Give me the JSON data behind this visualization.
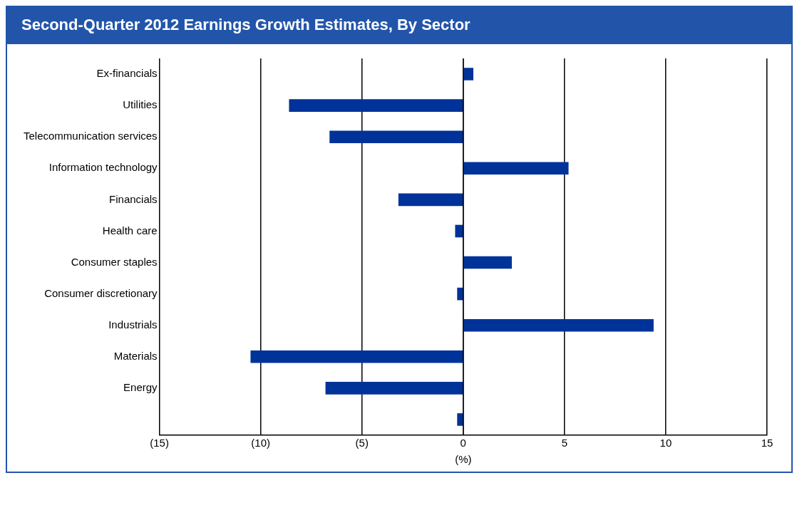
{
  "chart_data": {
    "type": "bar",
    "orientation": "horizontal",
    "title": "Second-Quarter 2012 Earnings Growth Estimates, By Sector",
    "xlabel": "(%)",
    "categories": [
      "Ex-financials",
      "Utilities",
      "Telecommunication services",
      "Information technology",
      "Financials",
      "Health care",
      "Consumer staples",
      "Consumer discretionary",
      "Industrials",
      "Materials",
      "Energy",
      null
    ],
    "values": [
      0.5,
      -8.6,
      -6.6,
      5.2,
      -3.2,
      -0.4,
      2.4,
      -0.3,
      9.4,
      -10.5,
      -6.8,
      -0.3
    ],
    "color": "#003399",
    "xlim": [
      -15,
      15
    ],
    "xticks": [
      {
        "value": -15,
        "label": "(15)"
      },
      {
        "value": -10,
        "label": "(10)"
      },
      {
        "value": -5,
        "label": "(5)"
      },
      0,
      5,
      10,
      15
    ],
    "grid": "x",
    "legend": false
  }
}
